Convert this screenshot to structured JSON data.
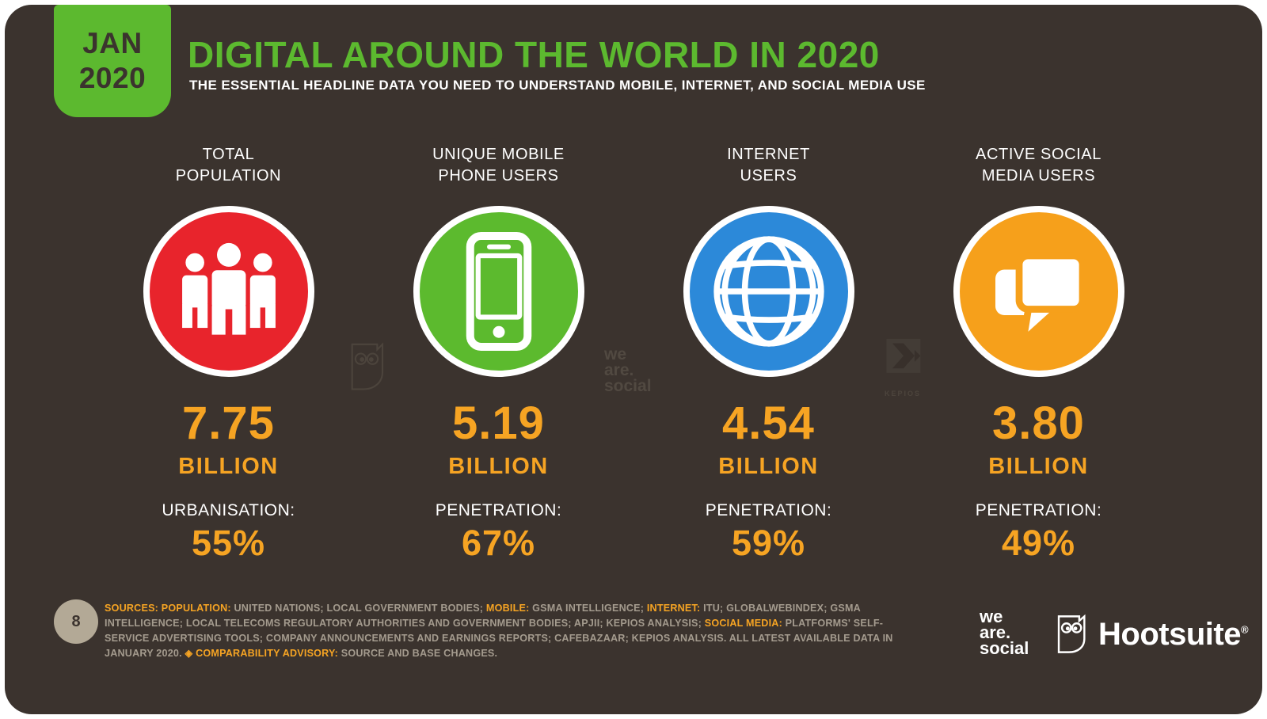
{
  "badge": {
    "line1": "JAN",
    "line2": "2020"
  },
  "header": {
    "title": "DIGITAL AROUND THE WORLD IN 2020",
    "subtitle": "THE ESSENTIAL HEADLINE DATA YOU NEED TO UNDERSTAND MOBILE, INTERNET, AND SOCIAL MEDIA USE"
  },
  "colors": {
    "background": "#3B332E",
    "accent_green": "#5CB92F",
    "accent_orange_text": "#F6A423",
    "population_red": "#E8242C",
    "mobile_green": "#5CBA2E",
    "internet_blue": "#2C89D9",
    "social_orange": "#F6A01B",
    "footer_gray": "#A49B8E",
    "page_circle": "#B3A996"
  },
  "metrics": [
    {
      "label_line1": "TOTAL",
      "label_line2": "POPULATION",
      "icon": "people-icon",
      "circle_color": "#E8242C",
      "value": "7.75",
      "unit": "BILLION",
      "stat_label": "URBANISATION:",
      "stat_value": "55%"
    },
    {
      "label_line1": "UNIQUE MOBILE",
      "label_line2": "PHONE USERS",
      "icon": "smartphone-icon",
      "circle_color": "#5CBA2E",
      "value": "5.19",
      "unit": "BILLION",
      "stat_label": "PENETRATION:",
      "stat_value": "67%"
    },
    {
      "label_line1": "INTERNET",
      "label_line2": "USERS",
      "icon": "globe-icon",
      "circle_color": "#2C89D9",
      "value": "4.54",
      "unit": "BILLION",
      "stat_label": "PENETRATION:",
      "stat_value": "59%"
    },
    {
      "label_line1": "ACTIVE SOCIAL",
      "label_line2": "MEDIA USERS",
      "icon": "chat-bubbles-icon",
      "circle_color": "#F6A01B",
      "value": "3.80",
      "unit": "BILLION",
      "stat_label": "PENETRATION:",
      "stat_value": "49%"
    }
  ],
  "watermarks": {
    "wearesocial": {
      "line1": "we",
      "line2": "are.",
      "line3": "social"
    },
    "kepios_label": "KEPIOS"
  },
  "footer": {
    "page_number": "8",
    "sources_segments": [
      {
        "t": "SOURCES: ",
        "hl": true
      },
      {
        "t": "POPULATION:",
        "hl": true
      },
      {
        "t": " UNITED NATIONS; LOCAL GOVERNMENT BODIES; ",
        "hl": false
      },
      {
        "t": "MOBILE:",
        "hl": true
      },
      {
        "t": " GSMA INTELLIGENCE; ",
        "hl": false
      },
      {
        "t": "INTERNET:",
        "hl": true
      },
      {
        "t": " ITU; GLOBALWEBINDEX; GSMA INTELLIGENCE; LOCAL TELECOMS REGULATORY AUTHORITIES AND GOVERNMENT BODIES; APJII; KEPIOS ANALYSIS; ",
        "hl": false
      },
      {
        "t": "SOCIAL MEDIA:",
        "hl": true
      },
      {
        "t": " PLATFORMS' SELF-SERVICE ADVERTISING TOOLS; COMPANY ANNOUNCEMENTS AND EARNINGS REPORTS; CAFEBAZAAR; KEPIOS ANALYSIS. ALL LATEST AVAILABLE DATA IN JANUARY 2020. ",
        "hl": false
      },
      {
        "t": "◈ COMPARABILITY ADVISORY:",
        "hl": true
      },
      {
        "t": " SOURCE AND BASE CHANGES.",
        "hl": false
      }
    ],
    "logos": {
      "wearesocial": {
        "line1": "we",
        "line2": "are.",
        "line3": "social"
      },
      "hootsuite": "Hootsuite",
      "hootsuite_r": "®"
    }
  },
  "chart_data": {
    "type": "table",
    "title": "DIGITAL AROUND THE WORLD IN 2020",
    "subtitle": "THE ESSENTIAL HEADLINE DATA YOU NEED TO UNDERSTAND MOBILE, INTERNET, AND SOCIAL MEDIA USE",
    "period": "JAN 2020",
    "categories": [
      "TOTAL POPULATION",
      "UNIQUE MOBILE PHONE USERS",
      "INTERNET USERS",
      "ACTIVE SOCIAL MEDIA USERS"
    ],
    "values_billions": [
      7.75,
      5.19,
      4.54,
      3.8
    ],
    "secondary_stats": [
      {
        "label": "URBANISATION",
        "value_pct": 55
      },
      {
        "label": "PENETRATION",
        "value_pct": 67
      },
      {
        "label": "PENETRATION",
        "value_pct": 59
      },
      {
        "label": "PENETRATION",
        "value_pct": 49
      }
    ]
  }
}
